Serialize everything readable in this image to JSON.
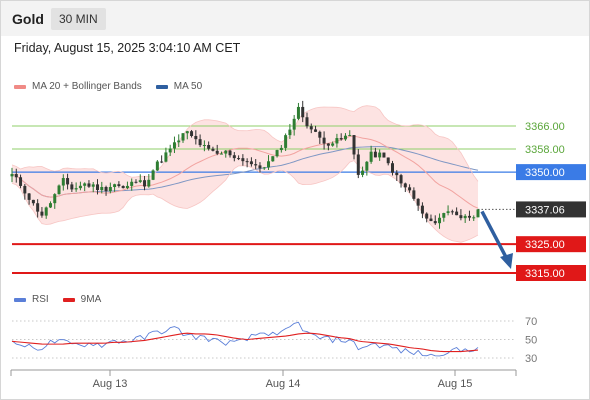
{
  "header": {
    "symbol": "Gold",
    "timeframe": "30 MIN"
  },
  "datetime": "Friday, August 15, 2025 3:04:10 AM CET",
  "legend_main": [
    {
      "label": "MA 20 + Bollinger Bands",
      "color": "#f08a86"
    },
    {
      "label": "MA 50",
      "color": "#2f5fa0"
    }
  ],
  "legend_rsi": [
    {
      "label": "RSI",
      "color": "#5b7fd8"
    },
    {
      "label": "9MA",
      "color": "#e02020"
    }
  ],
  "colors": {
    "green_level": "#8fcf6a",
    "blue_level": "#3a7be6",
    "red_level": "#e01818",
    "up": "#2e7d32",
    "down": "#333333",
    "arrow": "#2f5fa0"
  },
  "chart_data": [
    {
      "type": "candlestick",
      "ylim": [
        3312,
        3368
      ],
      "x_tick_labels": [
        "Aug 13",
        "Aug 14",
        "Aug 15"
      ],
      "levels": [
        {
          "value": 3366.0,
          "label": "3366.00",
          "style": "green"
        },
        {
          "value": 3358.0,
          "label": "3358.00",
          "style": "green"
        },
        {
          "value": 3350.0,
          "label": "3350.00",
          "style": "blue"
        },
        {
          "value": 3337.06,
          "label": "3337.06",
          "style": "current"
        },
        {
          "value": 3325.0,
          "label": "3325.00",
          "style": "red"
        },
        {
          "value": 3315.0,
          "label": "3315.00",
          "style": "red"
        }
      ],
      "price_path": [
        3349,
        3345,
        3339,
        3335,
        3341,
        3347,
        3344,
        3346,
        3345,
        3344,
        3346,
        3344,
        3347,
        3346,
        3352,
        3356,
        3360,
        3364,
        3361,
        3358,
        3356,
        3357,
        3355,
        3354,
        3351,
        3353,
        3357,
        3364,
        3372,
        3366,
        3362,
        3360,
        3361,
        3363,
        3348,
        3356,
        3356,
        3352,
        3346,
        3343,
        3336,
        3332,
        3335,
        3337,
        3334,
        3335,
        3337
      ]
    },
    {
      "type": "line",
      "name": "RSI panel",
      "yticks": [
        70,
        50,
        30
      ],
      "rsi": [
        46,
        45,
        40,
        42,
        48,
        47,
        44,
        45,
        46,
        44,
        49,
        48,
        50,
        52,
        58,
        60,
        62,
        55,
        53,
        52,
        48,
        47,
        46,
        50,
        56,
        58,
        52,
        62,
        68,
        55,
        52,
        50,
        50,
        49,
        40,
        45,
        44,
        42,
        38,
        36,
        35,
        32,
        36,
        38,
        38,
        40,
        43
      ],
      "ma9": [
        48,
        47,
        46,
        45,
        45,
        45,
        46,
        46,
        46,
        46,
        47,
        47,
        48,
        49,
        51,
        53,
        55,
        57,
        56,
        56,
        55,
        53,
        51,
        50,
        51,
        52,
        53,
        54,
        56,
        57,
        56,
        54,
        52,
        51,
        48,
        47,
        46,
        45,
        43,
        41,
        40,
        38,
        37,
        37,
        37,
        38,
        39
      ]
    }
  ]
}
